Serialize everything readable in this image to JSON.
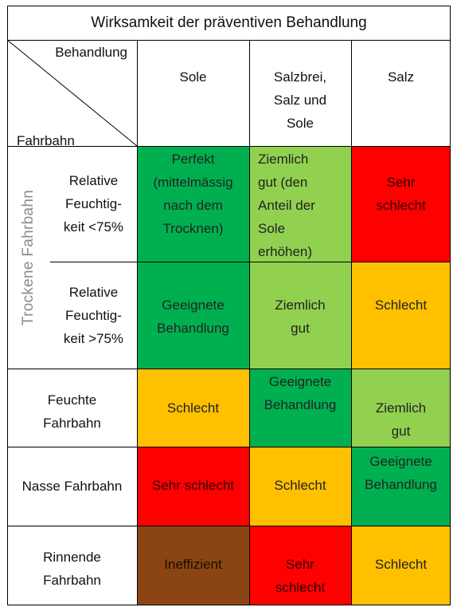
{
  "table": {
    "title": "Wirksamkeit der präventiven Behandlung",
    "corner_top": "Behandlung",
    "corner_bottom": "Fahrbahn",
    "columns": [
      "Sole",
      "Salzbrei,\nSalz und\nSole",
      "Salz"
    ],
    "group_label": "Trockene Fahrbahn",
    "rows": [
      {
        "label": "Relative\nFeuchtig-\nkeit <75%",
        "cells": [
          {
            "text": "Perfekt\n(mittelmässig\nnach dem\nTrocknen)",
            "color": "#00b050"
          },
          {
            "text": "Ziemlich\ngut (den\nAnteil der\nSole\nerhöhen)",
            "color": "#92d050"
          },
          {
            "text": "Sehr\nschlecht",
            "color": "#ff0000"
          }
        ]
      },
      {
        "label": "Relative\nFeuchtig-\nkeit >75%",
        "cells": [
          {
            "text": "Geeignete\nBehandlung",
            "color": "#00b050"
          },
          {
            "text": "Ziemlich\ngut",
            "color": "#92d050"
          },
          {
            "text": "Schlecht",
            "color": "#ffc000"
          }
        ]
      },
      {
        "label": "Feuchte\nFahrbahn",
        "cells": [
          {
            "text": "Schlecht",
            "color": "#ffc000"
          },
          {
            "text": "Geeignete\nBehandlung",
            "color": "#00b050"
          },
          {
            "text": "Ziemlich\ngut",
            "color": "#92d050"
          }
        ]
      },
      {
        "label": "Nasse Fahrbahn",
        "cells": [
          {
            "text": "Sehr schlecht",
            "color": "#ff0000"
          },
          {
            "text": "Schlecht",
            "color": "#ffc000"
          },
          {
            "text": "Geeignete\nBehandlung",
            "color": "#00b050"
          }
        ]
      },
      {
        "label": "Rinnende\nFahrbahn",
        "cells": [
          {
            "text": "Ineffizient",
            "color": "#8b4513"
          },
          {
            "text": "Sehr\nschlecht",
            "color": "#ff0000"
          },
          {
            "text": "Schlecht",
            "color": "#ffc000"
          }
        ]
      }
    ]
  }
}
